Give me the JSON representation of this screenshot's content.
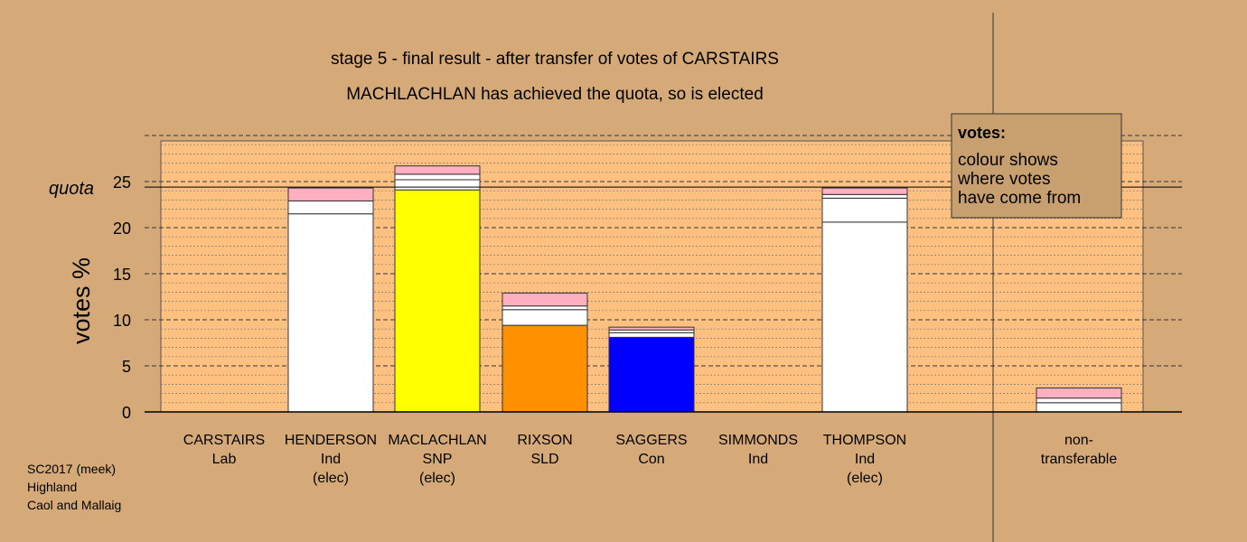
{
  "chart_data": {
    "type": "bar",
    "title": "stage 5 - final result - after transfer of votes of CARSTAIRS",
    "subtitle": "MACHLACHLAN has achieved the quota, so is elected",
    "ylabel": "votes %",
    "ylim": [
      0,
      30
    ],
    "yticks": [
      0,
      5,
      10,
      15,
      20,
      25
    ],
    "quota": {
      "label": "quota",
      "value": 24.4
    },
    "grid": true,
    "categories": [
      {
        "name": "CARSTAIRS",
        "party": "Lab",
        "status": ""
      },
      {
        "name": "HENDERSON",
        "party": "Ind",
        "status": "(elec)"
      },
      {
        "name": "MACLACHLAN",
        "party": "SNP",
        "status": "(elec)"
      },
      {
        "name": "RIXSON",
        "party": "SLD",
        "status": ""
      },
      {
        "name": "SAGGERS",
        "party": "Con",
        "status": ""
      },
      {
        "name": "SIMMONDS",
        "party": "Ind",
        "status": ""
      },
      {
        "name": "THOMPSON",
        "party": "Ind",
        "status": "(elec)"
      },
      {
        "name": "non-",
        "party": "transferable",
        "status": ""
      }
    ],
    "stacks": [
      [],
      [
        {
          "value": 21.5,
          "color": "#ffffff"
        },
        {
          "value": 1.4,
          "color": "#ffffff"
        },
        {
          "value": 1.4,
          "color": "#ffb0c0"
        }
      ],
      [
        {
          "value": 24.1,
          "color": "#ffff00"
        },
        {
          "value": 1.1,
          "color": "#ffffff"
        },
        {
          "value": 0.6,
          "color": "#ffffff"
        },
        {
          "value": 0.9,
          "color": "#ffb0c0"
        }
      ],
      [
        {
          "value": 9.4,
          "color": "#ff9000"
        },
        {
          "value": 1.7,
          "color": "#ffffff"
        },
        {
          "value": 0.4,
          "color": "#ffffff"
        },
        {
          "value": 1.4,
          "color": "#ffb0c0"
        }
      ],
      [
        {
          "value": 8.1,
          "color": "#0000ff"
        },
        {
          "value": 0.5,
          "color": "#ffffff"
        },
        {
          "value": 0.3,
          "color": "#ffffff"
        },
        {
          "value": 0.3,
          "color": "#ffb0c0"
        }
      ],
      [],
      [
        {
          "value": 20.6,
          "color": "#ffffff"
        },
        {
          "value": 2.6,
          "color": "#ffffff"
        },
        {
          "value": 0.4,
          "color": "#ffffff"
        },
        {
          "value": 0.7,
          "color": "#ffb0c0"
        }
      ],
      [
        {
          "value": 1.0,
          "color": "#ffffff"
        },
        {
          "value": 0.5,
          "color": "#ffffff"
        },
        {
          "value": 1.1,
          "color": "#ffb0c0"
        }
      ]
    ],
    "legend": {
      "title": "votes:",
      "lines": [
        "colour shows",
        "where votes",
        "have come from"
      ]
    }
  },
  "footer": [
    "SC2017 (meek)",
    "Highland",
    "Caol and Mallaig"
  ]
}
